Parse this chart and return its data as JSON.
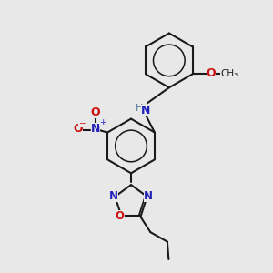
{
  "bg_color": "#e8e8e8",
  "bond_color": "#1a1a1a",
  "bond_width": 1.5,
  "n_color": "#2222bb",
  "o_color": "#cc1111",
  "h_color": "#557799",
  "font_size": 8.5,
  "fig_size": [
    3.0,
    3.0
  ],
  "dpi": 100,
  "xlim": [
    0,
    10
  ],
  "ylim": [
    0,
    10
  ]
}
